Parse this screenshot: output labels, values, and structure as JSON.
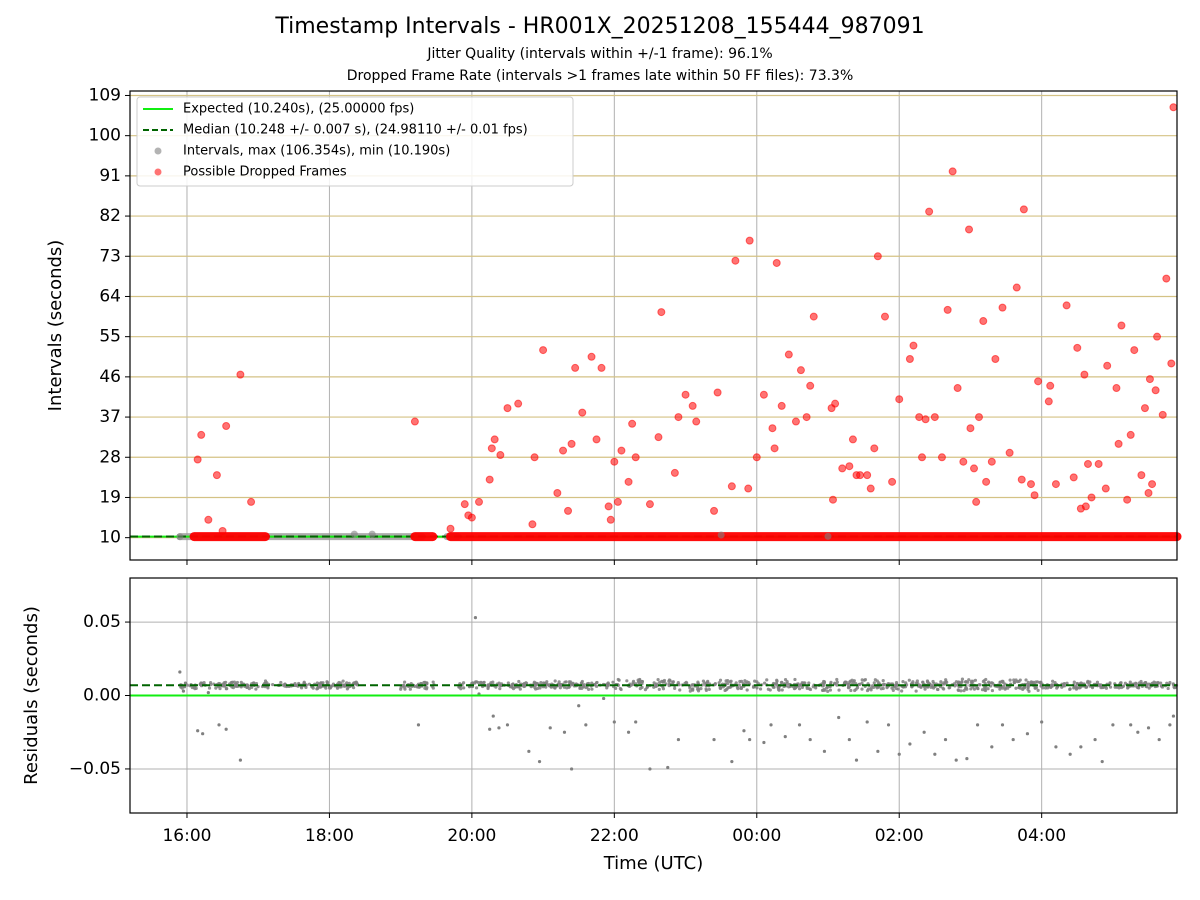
{
  "chart_data": [
    {
      "type": "scatter",
      "title": "Timestamp Intervals - HR001X_20251208_155444_987091",
      "subtitles": [
        "Jitter Quality (intervals within +/-1 frame): 96.1%",
        "Dropped Frame Rate (intervals >1 frames late within 50 FF files): 73.3%"
      ],
      "ylabel": "Intervals (seconds)",
      "xlabel": "",
      "x_unit": "hours since 16:00 UTC",
      "xlim": [
        -0.8,
        13.9
      ],
      "ylim": [
        5,
        110
      ],
      "yticks": [
        10,
        19,
        28,
        37,
        46,
        55,
        64,
        73,
        82,
        91,
        100,
        109
      ],
      "ytick_labels": [
        "10",
        "19",
        "28",
        "37",
        "46",
        "55",
        "64",
        "73",
        "82",
        "91",
        "100",
        "109"
      ],
      "horizontal_gridlines_color": "#d4c285",
      "vertical_gridlines": true,
      "legend_position": "upper-left",
      "legend": [
        "Expected (10.240s), (25.00000 fps)",
        "Median (10.248 +/- 0.007 s), (24.98110 +/- 0.01 fps)",
        "Intervals, max (106.354s), min (10.190s)",
        "Possible Dropped Frames"
      ],
      "expected_line": 10.24,
      "median_line": 10.248,
      "baseline_segments_gray": [
        [
          -0.1,
          3.3
        ],
        [
          3.65,
          3.8
        ]
      ],
      "baseline_segments_red": [
        [
          0.1,
          1.1
        ],
        [
          3.2,
          3.45
        ],
        [
          3.7,
          13.9
        ]
      ],
      "baseline_value": 10.24,
      "dropped_frames": [
        [
          0.15,
          27.5
        ],
        [
          0.2,
          33
        ],
        [
          0.3,
          14
        ],
        [
          0.42,
          24
        ],
        [
          0.5,
          11.5
        ],
        [
          0.55,
          35
        ],
        [
          0.75,
          46.5
        ],
        [
          0.9,
          18
        ],
        [
          3.2,
          36
        ],
        [
          3.7,
          12
        ],
        [
          3.9,
          17.5
        ],
        [
          3.95,
          15
        ],
        [
          4.0,
          14.5
        ],
        [
          4.1,
          18
        ],
        [
          4.25,
          23
        ],
        [
          4.28,
          30
        ],
        [
          4.32,
          32
        ],
        [
          4.4,
          28.5
        ],
        [
          4.5,
          39
        ],
        [
          4.65,
          40
        ],
        [
          4.85,
          13
        ],
        [
          4.88,
          28
        ],
        [
          5.0,
          52
        ],
        [
          5.2,
          20
        ],
        [
          5.28,
          29.5
        ],
        [
          5.35,
          16
        ],
        [
          5.4,
          31
        ],
        [
          5.45,
          48
        ],
        [
          5.55,
          38
        ],
        [
          5.68,
          50.5
        ],
        [
          5.75,
          32
        ],
        [
          5.82,
          48
        ],
        [
          5.92,
          17
        ],
        [
          5.95,
          14
        ],
        [
          6.0,
          27
        ],
        [
          6.05,
          18
        ],
        [
          6.1,
          29.5
        ],
        [
          6.2,
          22.5
        ],
        [
          6.25,
          35.5
        ],
        [
          6.3,
          28
        ],
        [
          6.5,
          17.5
        ],
        [
          6.62,
          32.5
        ],
        [
          6.66,
          60.5
        ],
        [
          6.85,
          24.5
        ],
        [
          6.9,
          37
        ],
        [
          7.0,
          42
        ],
        [
          7.1,
          39.5
        ],
        [
          7.15,
          36
        ],
        [
          7.4,
          16
        ],
        [
          7.45,
          42.5
        ],
        [
          7.65,
          21.5
        ],
        [
          7.7,
          72
        ],
        [
          7.88,
          21
        ],
        [
          7.9,
          76.5
        ],
        [
          8.0,
          28
        ],
        [
          8.1,
          42
        ],
        [
          8.22,
          34.5
        ],
        [
          8.25,
          30
        ],
        [
          8.28,
          71.5
        ],
        [
          8.35,
          39.5
        ],
        [
          8.45,
          51
        ],
        [
          8.55,
          36
        ],
        [
          8.62,
          47.5
        ],
        [
          8.7,
          37
        ],
        [
          8.75,
          44
        ],
        [
          8.8,
          59.5
        ],
        [
          9.05,
          39
        ],
        [
          9.07,
          18.5
        ],
        [
          9.1,
          40
        ],
        [
          9.2,
          25.5
        ],
        [
          9.3,
          26
        ],
        [
          9.35,
          32
        ],
        [
          9.4,
          24
        ],
        [
          9.45,
          24
        ],
        [
          9.55,
          24
        ],
        [
          9.6,
          21
        ],
        [
          9.65,
          30
        ],
        [
          9.7,
          73
        ],
        [
          9.8,
          59.5
        ],
        [
          9.9,
          22.5
        ],
        [
          10.0,
          41
        ],
        [
          10.15,
          50
        ],
        [
          10.2,
          53
        ],
        [
          10.28,
          37
        ],
        [
          10.32,
          28
        ],
        [
          10.37,
          36.5
        ],
        [
          10.42,
          83
        ],
        [
          10.5,
          37
        ],
        [
          10.6,
          28
        ],
        [
          10.68,
          61
        ],
        [
          10.75,
          92
        ],
        [
          10.82,
          43.5
        ],
        [
          10.9,
          27
        ],
        [
          10.98,
          79
        ],
        [
          11.0,
          34.5
        ],
        [
          11.05,
          25.5
        ],
        [
          11.08,
          18
        ],
        [
          11.12,
          37
        ],
        [
          11.18,
          58.5
        ],
        [
          11.22,
          22.5
        ],
        [
          11.3,
          27
        ],
        [
          11.35,
          50
        ],
        [
          11.45,
          61.5
        ],
        [
          11.55,
          29
        ],
        [
          11.65,
          66
        ],
        [
          11.72,
          23
        ],
        [
          11.75,
          83.5
        ],
        [
          11.85,
          22
        ],
        [
          11.9,
          19.5
        ],
        [
          11.95,
          45
        ],
        [
          12.1,
          40.5
        ],
        [
          12.12,
          44
        ],
        [
          12.2,
          22
        ],
        [
          12.35,
          62
        ],
        [
          12.45,
          23.5
        ],
        [
          12.5,
          52.5
        ],
        [
          12.55,
          16.5
        ],
        [
          12.6,
          46.5
        ],
        [
          12.62,
          17
        ],
        [
          12.65,
          26.5
        ],
        [
          12.7,
          19
        ],
        [
          12.8,
          26.5
        ],
        [
          12.9,
          21
        ],
        [
          12.92,
          48.5
        ],
        [
          13.05,
          43.5
        ],
        [
          13.08,
          31
        ],
        [
          13.12,
          57.5
        ],
        [
          13.2,
          18.5
        ],
        [
          13.25,
          33
        ],
        [
          13.3,
          52
        ],
        [
          13.4,
          24
        ],
        [
          13.45,
          39
        ],
        [
          13.5,
          20
        ],
        [
          13.52,
          45.5
        ],
        [
          13.55,
          22
        ],
        [
          13.6,
          43
        ],
        [
          13.62,
          55
        ],
        [
          13.7,
          37.5
        ],
        [
          13.75,
          68
        ],
        [
          13.82,
          49
        ],
        [
          13.85,
          106.354
        ]
      ],
      "gray_points": [
        [
          -0.1,
          10.2
        ],
        [
          2.35,
          10.8
        ],
        [
          2.6,
          10.8
        ],
        [
          7.5,
          10.6
        ],
        [
          9.0,
          10.3
        ]
      ]
    },
    {
      "type": "scatter",
      "xlabel": "Time (UTC)",
      "ylabel": "Residuals (seconds)",
      "x_unit": "hours since 16:00 UTC",
      "xlim": [
        -0.8,
        13.9
      ],
      "ylim": [
        -0.08,
        0.08
      ],
      "yticks": [
        0.05,
        0.0,
        -0.05
      ],
      "ytick_labels": [
        "0.05",
        "0.00",
        "−0.05"
      ],
      "xticks": [
        0,
        2,
        4,
        6,
        8,
        10,
        12
      ],
      "xtick_labels": [
        "16:00",
        "18:00",
        "20:00",
        "22:00",
        "00:00",
        "02:00",
        "04:00"
      ],
      "grid": true,
      "expected_line": 0.0,
      "median_line": 0.007,
      "residual_band_segments": [
        [
          -0.1,
          2.4
        ],
        [
          3.0,
          3.5
        ],
        [
          3.8,
          13.9
        ]
      ],
      "residual_band_center": 0.007,
      "residual_outliers": [
        [
          -0.1,
          0.016
        ],
        [
          -0.05,
          0.003
        ],
        [
          0.15,
          -0.024
        ],
        [
          0.22,
          -0.026
        ],
        [
          0.45,
          -0.02
        ],
        [
          0.55,
          -0.023
        ],
        [
          0.75,
          -0.044
        ],
        [
          0.3,
          0.002
        ],
        [
          3.25,
          -0.02
        ],
        [
          4.05,
          0.053
        ],
        [
          4.1,
          0.001
        ],
        [
          4.25,
          -0.023
        ],
        [
          4.3,
          -0.014
        ],
        [
          4.38,
          -0.022
        ],
        [
          4.5,
          -0.02
        ],
        [
          4.8,
          -0.038
        ],
        [
          4.95,
          -0.045
        ],
        [
          5.1,
          -0.022
        ],
        [
          5.3,
          -0.025
        ],
        [
          5.4,
          -0.05
        ],
        [
          5.5,
          -0.007
        ],
        [
          5.6,
          -0.02
        ],
        [
          5.85,
          -0.002
        ],
        [
          6.0,
          -0.018
        ],
        [
          6.2,
          -0.025
        ],
        [
          6.3,
          -0.018
        ],
        [
          6.5,
          -0.05
        ],
        [
          6.75,
          -0.049
        ],
        [
          6.9,
          -0.03
        ],
        [
          7.4,
          -0.03
        ],
        [
          7.65,
          -0.045
        ],
        [
          7.82,
          -0.024
        ],
        [
          7.9,
          -0.03
        ],
        [
          8.1,
          -0.032
        ],
        [
          8.2,
          -0.02
        ],
        [
          8.4,
          -0.028
        ],
        [
          8.6,
          -0.02
        ],
        [
          8.75,
          -0.03
        ],
        [
          8.95,
          -0.038
        ],
        [
          9.15,
          -0.015
        ],
        [
          9.3,
          -0.03
        ],
        [
          9.4,
          -0.044
        ],
        [
          9.55,
          -0.018
        ],
        [
          9.7,
          -0.038
        ],
        [
          9.85,
          -0.02
        ],
        [
          10.0,
          -0.04
        ],
        [
          10.15,
          -0.033
        ],
        [
          10.35,
          -0.025
        ],
        [
          10.5,
          -0.04
        ],
        [
          10.65,
          -0.03
        ],
        [
          10.8,
          -0.044
        ],
        [
          10.95,
          -0.043
        ],
        [
          11.1,
          -0.02
        ],
        [
          11.3,
          -0.035
        ],
        [
          11.45,
          -0.02
        ],
        [
          11.6,
          -0.03
        ],
        [
          11.8,
          -0.026
        ],
        [
          12.0,
          -0.018
        ],
        [
          12.2,
          -0.035
        ],
        [
          12.4,
          -0.04
        ],
        [
          12.55,
          -0.035
        ],
        [
          12.75,
          -0.03
        ],
        [
          12.85,
          -0.045
        ],
        [
          13.0,
          -0.02
        ],
        [
          13.25,
          -0.02
        ],
        [
          13.35,
          -0.025
        ],
        [
          13.5,
          -0.022
        ],
        [
          13.65,
          -0.03
        ],
        [
          13.8,
          -0.02
        ],
        [
          13.85,
          -0.014
        ]
      ]
    }
  ]
}
